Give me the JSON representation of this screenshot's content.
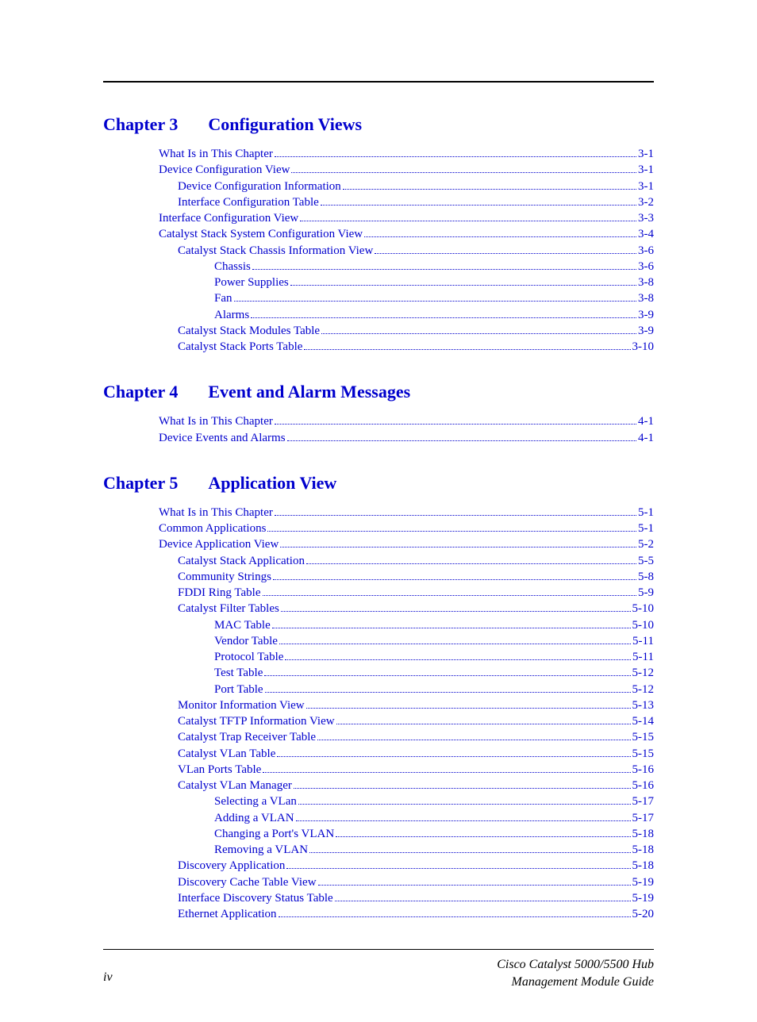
{
  "chapters": [
    {
      "num": "Chapter 3",
      "title": "Configuration Views",
      "entries": [
        {
          "label": "What Is in This Chapter",
          "page": "3-1",
          "level": 0
        },
        {
          "label": "Device Configuration View",
          "page": "3-1",
          "level": 0
        },
        {
          "label": "Device Configuration Information",
          "page": "3-1",
          "level": 1
        },
        {
          "label": "Interface Configuration Table",
          "page": "3-2",
          "level": 1
        },
        {
          "label": "Interface Configuration View",
          "page": "3-3",
          "level": 0
        },
        {
          "label": "Catalyst Stack System Configuration View",
          "page": "3-4",
          "level": 0
        },
        {
          "label": "Catalyst Stack Chassis Information View",
          "page": "3-6",
          "level": 1
        },
        {
          "label": "Chassis",
          "page": "3-6",
          "level": 2
        },
        {
          "label": "Power Supplies",
          "page": "3-8",
          "level": 2
        },
        {
          "label": "Fan",
          "page": "3-8",
          "level": 2
        },
        {
          "label": "Alarms",
          "page": "3-9",
          "level": 2
        },
        {
          "label": "Catalyst Stack Modules Table",
          "page": "3-9",
          "level": 1
        },
        {
          "label": "Catalyst Stack Ports Table",
          "page": "3-10",
          "level": 1
        }
      ]
    },
    {
      "num": "Chapter 4",
      "title": "Event and Alarm Messages",
      "entries": [
        {
          "label": "What Is in This Chapter",
          "page": "4-1",
          "level": 0
        },
        {
          "label": "Device Events and Alarms",
          "page": "4-1",
          "level": 0
        }
      ]
    },
    {
      "num": "Chapter 5",
      "title": "Application View",
      "entries": [
        {
          "label": "What Is in This Chapter",
          "page": "5-1",
          "level": 0
        },
        {
          "label": "Common Applications",
          "page": "5-1",
          "level": 0
        },
        {
          "label": "Device Application View",
          "page": "5-2",
          "level": 0
        },
        {
          "label": "Catalyst Stack Application",
          "page": "5-5",
          "level": 1
        },
        {
          "label": "Community Strings",
          "page": "5-8",
          "level": 1
        },
        {
          "label": "FDDI Ring Table",
          "page": "5-9",
          "level": 1
        },
        {
          "label": "Catalyst Filter Tables",
          "page": "5-10",
          "level": 1
        },
        {
          "label": "MAC Table",
          "page": "5-10",
          "level": 2
        },
        {
          "label": "Vendor Table",
          "page": "5-11",
          "level": 2
        },
        {
          "label": "Protocol Table",
          "page": "5-11",
          "level": 2
        },
        {
          "label": "Test Table",
          "page": "5-12",
          "level": 2
        },
        {
          "label": "Port Table",
          "page": "5-12",
          "level": 2
        },
        {
          "label": "Monitor Information View",
          "page": "5-13",
          "level": 1
        },
        {
          "label": "Catalyst TFTP Information View",
          "page": "5-14",
          "level": 1
        },
        {
          "label": "Catalyst Trap Receiver Table",
          "page": "5-15",
          "level": 1
        },
        {
          "label": "Catalyst VLan Table",
          "page": "5-15",
          "level": 1
        },
        {
          "label": "VLan Ports Table",
          "page": "5-16",
          "level": 1
        },
        {
          "label": "Catalyst VLan Manager",
          "page": "5-16",
          "level": 1
        },
        {
          "label": "Selecting a VLan",
          "page": "5-17",
          "level": 2
        },
        {
          "label": "Adding a VLAN",
          "page": "5-17",
          "level": 2
        },
        {
          "label": "Changing a Port's VLAN",
          "page": "5-18",
          "level": 2
        },
        {
          "label": "Removing a VLAN",
          "page": "5-18",
          "level": 2
        },
        {
          "label": "Discovery Application",
          "page": "5-18",
          "level": 1
        },
        {
          "label": "Discovery Cache Table View",
          "page": "5-19",
          "level": 1
        },
        {
          "label": "Interface Discovery Status Table",
          "page": "5-19",
          "level": 1
        },
        {
          "label": "Ethernet Application",
          "page": "5-20",
          "level": 1
        }
      ]
    }
  ],
  "footer": {
    "page_number": "iv",
    "doc_title_line1": "Cisco Catalyst 5000/5500 Hub",
    "doc_title_line2": "Management Module Guide"
  },
  "colors": {
    "link": "#0000cd",
    "text": "#000000",
    "background": "#ffffff"
  }
}
